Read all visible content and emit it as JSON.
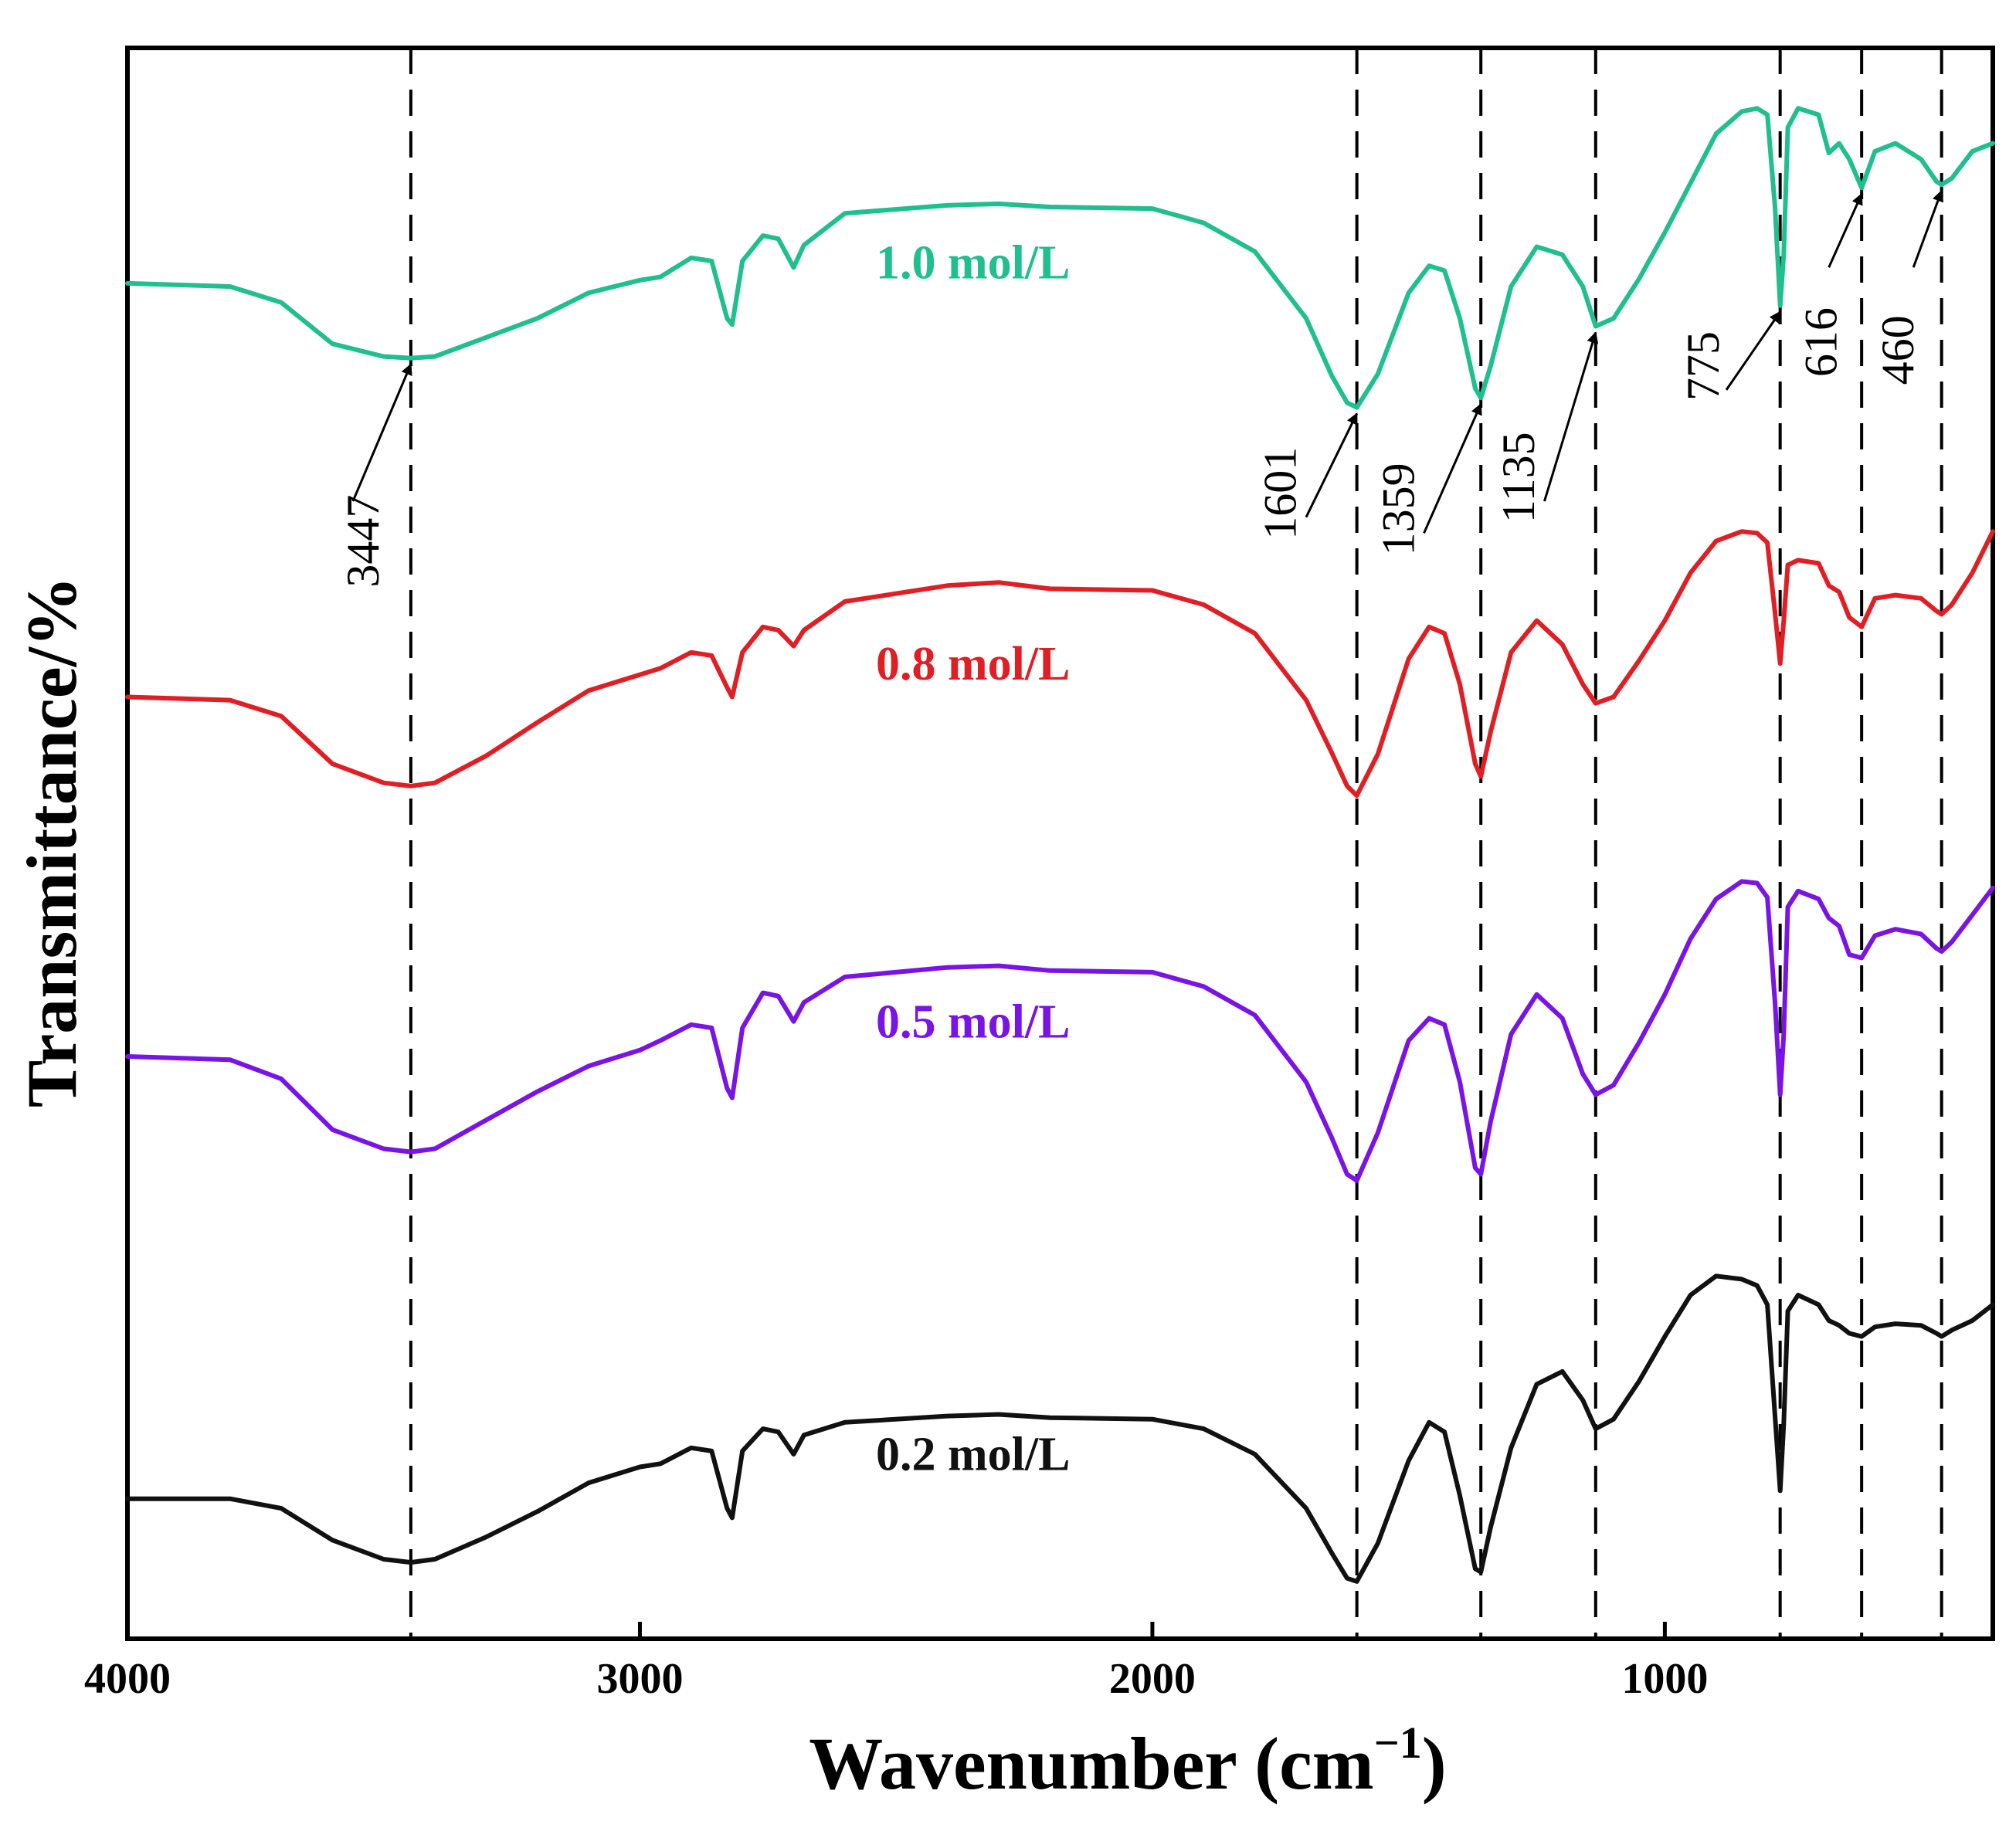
{
  "chart_data": {
    "type": "line",
    "title": "",
    "xlabel": "Wavenumber (cm",
    "xlabel_sup": "−1",
    "xlabel_close": ")",
    "ylabel": "Transmittance/%",
    "xlim": [
      4000,
      360
    ],
    "ylim": [
      0,
      100
    ],
    "xticks": [
      4000,
      3000,
      2000,
      1000
    ],
    "yticks": [],
    "grid": false,
    "reference_lines": [
      3447,
      1601,
      1359,
      1135,
      775,
      616,
      460
    ],
    "peak_annotations": [
      {
        "label": "3447",
        "x": 3447
      },
      {
        "label": "1601",
        "x": 1601
      },
      {
        "label": "1359",
        "x": 1359
      },
      {
        "label": "1135",
        "x": 1135
      },
      {
        "label": "775",
        "x": 775
      },
      {
        "label": "616",
        "x": 616
      },
      {
        "label": "460",
        "x": 460
      }
    ],
    "series": [
      {
        "name": "1.0 mol/L",
        "color": "#1fbf8f",
        "points": [
          [
            4000,
            85.2
          ],
          [
            3800,
            85.0
          ],
          [
            3700,
            84.0
          ],
          [
            3600,
            81.4
          ],
          [
            3500,
            80.6
          ],
          [
            3447,
            80.5
          ],
          [
            3400,
            80.6
          ],
          [
            3300,
            81.8
          ],
          [
            3200,
            83.0
          ],
          [
            3100,
            84.6
          ],
          [
            3000,
            85.4
          ],
          [
            2960,
            85.6
          ],
          [
            2900,
            86.8
          ],
          [
            2860,
            86.6
          ],
          [
            2830,
            83.0
          ],
          [
            2820,
            82.6
          ],
          [
            2800,
            86.6
          ],
          [
            2760,
            88.2
          ],
          [
            2730,
            88.0
          ],
          [
            2700,
            86.2
          ],
          [
            2680,
            87.6
          ],
          [
            2600,
            89.6
          ],
          [
            2400,
            90.1
          ],
          [
            2300,
            90.2
          ],
          [
            2200,
            90.0
          ],
          [
            2000,
            89.9
          ],
          [
            1900,
            89.0
          ],
          [
            1800,
            87.2
          ],
          [
            1700,
            83.0
          ],
          [
            1650,
            79.4
          ],
          [
            1620,
            77.7
          ],
          [
            1601,
            77.4
          ],
          [
            1560,
            79.5
          ],
          [
            1500,
            84.6
          ],
          [
            1460,
            86.3
          ],
          [
            1430,
            86.0
          ],
          [
            1400,
            83.0
          ],
          [
            1370,
            78.6
          ],
          [
            1359,
            78.0
          ],
          [
            1340,
            80.0
          ],
          [
            1300,
            85.0
          ],
          [
            1250,
            87.5
          ],
          [
            1200,
            87.0
          ],
          [
            1160,
            85.0
          ],
          [
            1135,
            82.5
          ],
          [
            1100,
            83.0
          ],
          [
            1050,
            85.5
          ],
          [
            1000,
            88.4
          ],
          [
            950,
            91.5
          ],
          [
            900,
            94.6
          ],
          [
            850,
            96.0
          ],
          [
            820,
            96.2
          ],
          [
            800,
            95.8
          ],
          [
            785,
            90.0
          ],
          [
            775,
            83.8
          ],
          [
            768,
            87.0
          ],
          [
            760,
            95.0
          ],
          [
            740,
            96.2
          ],
          [
            700,
            95.8
          ],
          [
            680,
            93.4
          ],
          [
            660,
            94.0
          ],
          [
            640,
            93.0
          ],
          [
            616,
            91.2
          ],
          [
            590,
            93.5
          ],
          [
            550,
            94.0
          ],
          [
            500,
            93.0
          ],
          [
            470,
            91.6
          ],
          [
            460,
            91.4
          ],
          [
            440,
            91.8
          ],
          [
            400,
            93.5
          ],
          [
            360,
            94.0
          ]
        ]
      },
      {
        "name": "0.8 mol/L",
        "color": "#e01f25",
        "points": [
          [
            4000,
            59.2
          ],
          [
            3800,
            59.0
          ],
          [
            3700,
            58.0
          ],
          [
            3600,
            55.0
          ],
          [
            3500,
            53.8
          ],
          [
            3447,
            53.6
          ],
          [
            3400,
            53.8
          ],
          [
            3300,
            55.5
          ],
          [
            3200,
            57.6
          ],
          [
            3100,
            59.6
          ],
          [
            3000,
            60.6
          ],
          [
            2960,
            61.0
          ],
          [
            2900,
            62.0
          ],
          [
            2860,
            61.8
          ],
          [
            2830,
            59.8
          ],
          [
            2820,
            59.2
          ],
          [
            2800,
            62.0
          ],
          [
            2760,
            63.6
          ],
          [
            2730,
            63.4
          ],
          [
            2700,
            62.4
          ],
          [
            2680,
            63.4
          ],
          [
            2600,
            65.2
          ],
          [
            2400,
            66.2
          ],
          [
            2300,
            66.4
          ],
          [
            2200,
            66.0
          ],
          [
            2000,
            65.9
          ],
          [
            1900,
            65.0
          ],
          [
            1800,
            63.2
          ],
          [
            1700,
            59.0
          ],
          [
            1650,
            55.7
          ],
          [
            1620,
            53.6
          ],
          [
            1601,
            53.0
          ],
          [
            1560,
            55.6
          ],
          [
            1500,
            61.6
          ],
          [
            1460,
            63.6
          ],
          [
            1430,
            63.2
          ],
          [
            1400,
            60.0
          ],
          [
            1370,
            55.0
          ],
          [
            1359,
            54.2
          ],
          [
            1340,
            57.0
          ],
          [
            1300,
            62.0
          ],
          [
            1250,
            64.0
          ],
          [
            1200,
            62.5
          ],
          [
            1160,
            60.0
          ],
          [
            1135,
            58.8
          ],
          [
            1100,
            59.2
          ],
          [
            1050,
            61.5
          ],
          [
            1000,
            64.0
          ],
          [
            950,
            67.0
          ],
          [
            900,
            69.0
          ],
          [
            850,
            69.6
          ],
          [
            820,
            69.5
          ],
          [
            800,
            68.9
          ],
          [
            785,
            64.5
          ],
          [
            775,
            61.3
          ],
          [
            768,
            64.0
          ],
          [
            760,
            67.5
          ],
          [
            740,
            67.8
          ],
          [
            700,
            67.6
          ],
          [
            680,
            66.2
          ],
          [
            660,
            65.8
          ],
          [
            640,
            64.2
          ],
          [
            616,
            63.6
          ],
          [
            590,
            65.4
          ],
          [
            550,
            65.6
          ],
          [
            500,
            65.4
          ],
          [
            470,
            64.6
          ],
          [
            460,
            64.4
          ],
          [
            440,
            65.0
          ],
          [
            400,
            67.0
          ],
          [
            360,
            69.6
          ]
        ]
      },
      {
        "name": "0.5 mol/L",
        "color": "#7a14e6",
        "points": [
          [
            4000,
            36.6
          ],
          [
            3800,
            36.4
          ],
          [
            3700,
            35.2
          ],
          [
            3600,
            32.0
          ],
          [
            3500,
            30.8
          ],
          [
            3447,
            30.6
          ],
          [
            3400,
            30.8
          ],
          [
            3300,
            32.6
          ],
          [
            3200,
            34.4
          ],
          [
            3100,
            36.0
          ],
          [
            3000,
            37.0
          ],
          [
            2960,
            37.6
          ],
          [
            2900,
            38.6
          ],
          [
            2860,
            38.4
          ],
          [
            2830,
            34.6
          ],
          [
            2820,
            34.0
          ],
          [
            2800,
            38.4
          ],
          [
            2760,
            40.6
          ],
          [
            2730,
            40.4
          ],
          [
            2700,
            38.8
          ],
          [
            2680,
            40.0
          ],
          [
            2600,
            41.6
          ],
          [
            2400,
            42.2
          ],
          [
            2300,
            42.3
          ],
          [
            2200,
            42.0
          ],
          [
            2000,
            41.9
          ],
          [
            1900,
            41.0
          ],
          [
            1800,
            39.2
          ],
          [
            1700,
            35.0
          ],
          [
            1650,
            31.5
          ],
          [
            1620,
            29.2
          ],
          [
            1601,
            28.8
          ],
          [
            1560,
            31.8
          ],
          [
            1500,
            37.6
          ],
          [
            1460,
            39.0
          ],
          [
            1430,
            38.6
          ],
          [
            1400,
            35.0
          ],
          [
            1370,
            29.6
          ],
          [
            1359,
            29.2
          ],
          [
            1340,
            32.5
          ],
          [
            1300,
            38.0
          ],
          [
            1250,
            40.5
          ],
          [
            1200,
            39.0
          ],
          [
            1160,
            35.5
          ],
          [
            1135,
            34.2
          ],
          [
            1100,
            34.8
          ],
          [
            1050,
            37.5
          ],
          [
            1000,
            40.5
          ],
          [
            950,
            44.0
          ],
          [
            900,
            46.5
          ],
          [
            850,
            47.6
          ],
          [
            820,
            47.5
          ],
          [
            800,
            46.6
          ],
          [
            785,
            40.0
          ],
          [
            775,
            34.2
          ],
          [
            768,
            38.0
          ],
          [
            760,
            46.0
          ],
          [
            740,
            47.0
          ],
          [
            700,
            46.5
          ],
          [
            680,
            45.3
          ],
          [
            660,
            44.8
          ],
          [
            640,
            43.0
          ],
          [
            616,
            42.8
          ],
          [
            590,
            44.2
          ],
          [
            550,
            44.6
          ],
          [
            500,
            44.3
          ],
          [
            470,
            43.4
          ],
          [
            460,
            43.2
          ],
          [
            440,
            43.8
          ],
          [
            400,
            45.5
          ],
          [
            360,
            47.2
          ]
        ]
      },
      {
        "name": "0.2 mol/L",
        "color": "#111111",
        "points": [
          [
            4000,
            8.8
          ],
          [
            3800,
            8.8
          ],
          [
            3700,
            8.2
          ],
          [
            3600,
            6.2
          ],
          [
            3500,
            5.0
          ],
          [
            3447,
            4.8
          ],
          [
            3400,
            5.0
          ],
          [
            3300,
            6.4
          ],
          [
            3200,
            8.0
          ],
          [
            3100,
            9.8
          ],
          [
            3000,
            10.8
          ],
          [
            2960,
            11.0
          ],
          [
            2900,
            12.0
          ],
          [
            2860,
            11.8
          ],
          [
            2830,
            8.2
          ],
          [
            2820,
            7.6
          ],
          [
            2800,
            11.8
          ],
          [
            2760,
            13.2
          ],
          [
            2730,
            13.0
          ],
          [
            2700,
            11.6
          ],
          [
            2680,
            12.8
          ],
          [
            2600,
            13.6
          ],
          [
            2400,
            14.0
          ],
          [
            2300,
            14.1
          ],
          [
            2200,
            13.9
          ],
          [
            2000,
            13.8
          ],
          [
            1900,
            13.2
          ],
          [
            1800,
            11.6
          ],
          [
            1700,
            8.2
          ],
          [
            1650,
            5.4
          ],
          [
            1620,
            3.8
          ],
          [
            1601,
            3.6
          ],
          [
            1560,
            6.0
          ],
          [
            1500,
            11.2
          ],
          [
            1460,
            13.6
          ],
          [
            1430,
            13.0
          ],
          [
            1400,
            9.0
          ],
          [
            1370,
            4.4
          ],
          [
            1359,
            4.2
          ],
          [
            1340,
            7.0
          ],
          [
            1300,
            12.0
          ],
          [
            1250,
            16.0
          ],
          [
            1200,
            16.8
          ],
          [
            1160,
            15.0
          ],
          [
            1135,
            13.2
          ],
          [
            1100,
            13.8
          ],
          [
            1050,
            16.2
          ],
          [
            1000,
            19.0
          ],
          [
            950,
            21.6
          ],
          [
            900,
            22.8
          ],
          [
            850,
            22.6
          ],
          [
            820,
            22.2
          ],
          [
            800,
            21.0
          ],
          [
            785,
            14.0
          ],
          [
            775,
            9.3
          ],
          [
            768,
            13.5
          ],
          [
            760,
            20.6
          ],
          [
            740,
            21.6
          ],
          [
            700,
            21.0
          ],
          [
            680,
            20.0
          ],
          [
            660,
            19.7
          ],
          [
            640,
            19.2
          ],
          [
            616,
            19.0
          ],
          [
            590,
            19.6
          ],
          [
            550,
            19.8
          ],
          [
            500,
            19.7
          ],
          [
            470,
            19.2
          ],
          [
            460,
            19.0
          ],
          [
            440,
            19.4
          ],
          [
            400,
            20.0
          ],
          [
            360,
            21.0
          ]
        ]
      }
    ]
  }
}
